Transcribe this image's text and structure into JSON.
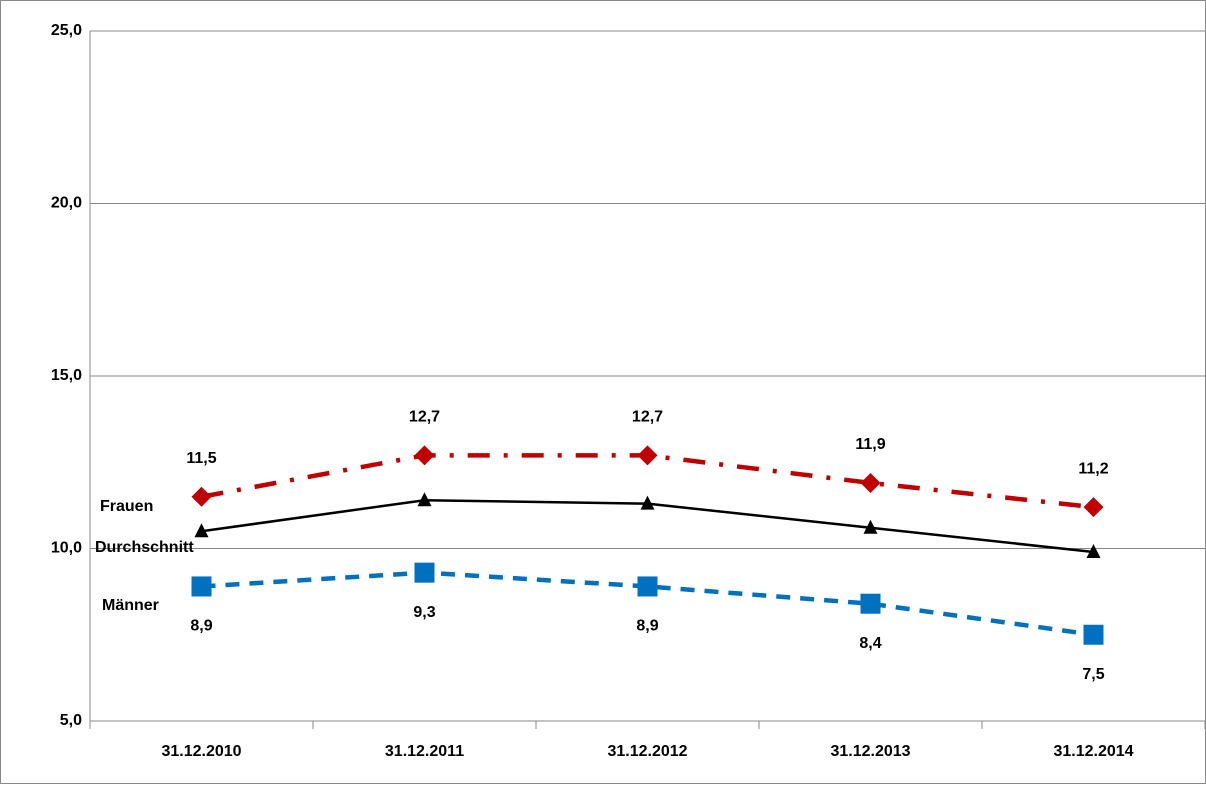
{
  "chart_data": {
    "type": "line",
    "categories": [
      "31.12.2010",
      "31.12.2011",
      "31.12.2012",
      "31.12.2013",
      "31.12.2014"
    ],
    "ylim": [
      5,
      25
    ],
    "yticks": [
      {
        "value": 5,
        "label": "5,0"
      },
      {
        "value": 10,
        "label": "10,0"
      },
      {
        "value": 15,
        "label": "15,0"
      },
      {
        "value": 20,
        "label": "20,0"
      },
      {
        "value": 25,
        "label": "25,0"
      }
    ],
    "grid": true,
    "series": [
      {
        "name": "Frauen",
        "color": "#c00000",
        "values": [
          11.5,
          12.7,
          12.7,
          11.9,
          11.2
        ],
        "value_labels": [
          "11,5",
          "12,7",
          "12,7",
          "11,9",
          "11,2"
        ]
      },
      {
        "name": "Durchschnitt",
        "color": "#000000",
        "values": [
          10.5,
          11.4,
          11.3,
          10.6,
          9.9
        ]
      },
      {
        "name": "Männer",
        "color": "#0070c0",
        "values": [
          8.9,
          9.3,
          8.9,
          8.4,
          7.5
        ],
        "value_labels": [
          "8,9",
          "9,3",
          "8,9",
          "8,4",
          "7,5"
        ]
      }
    ]
  }
}
